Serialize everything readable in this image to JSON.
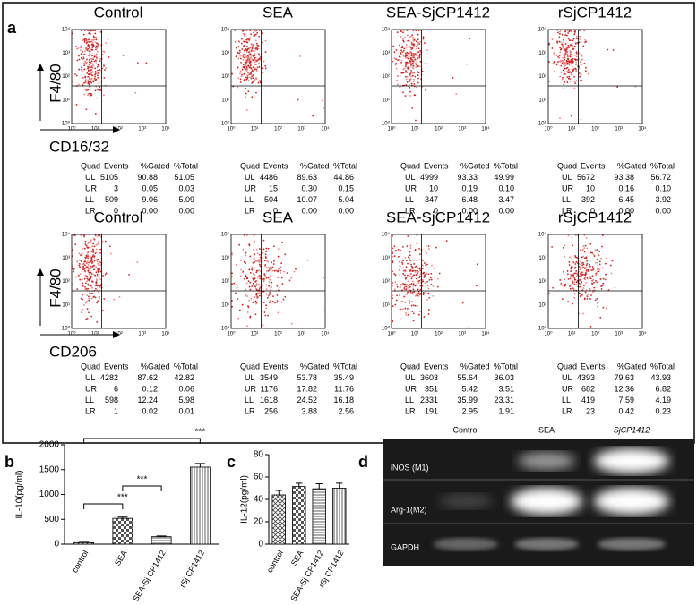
{
  "panel_labels": [
    "a",
    "b",
    "c",
    "d"
  ],
  "flow": {
    "log_ticks": [
      "10⁰",
      "10¹",
      "10²",
      "10³",
      "10⁴"
    ],
    "y_label": "F4/80",
    "table_header": [
      "Quad",
      "Events",
      "%Gated",
      "%Total"
    ],
    "rows": [
      {
        "x_label": "CD16/32",
        "plots": [
          {
            "title": "Control",
            "table": [
              [
                "UL",
                "5105",
                "90.88",
                "51.05"
              ],
              [
                "UR",
                "3",
                "0.05",
                "0.03"
              ],
              [
                "LL",
                "509",
                "9.06",
                "5.09"
              ],
              [
                "LR",
                "0",
                "0.00",
                "0.00"
              ]
            ]
          },
          {
            "title": "SEA",
            "table": [
              [
                "UL",
                "4486",
                "89.63",
                "44.86"
              ],
              [
                "UR",
                "15",
                "0.30",
                "0.15"
              ],
              [
                "LL",
                "504",
                "10.07",
                "5.04"
              ],
              [
                "LR",
                "0",
                "0.00",
                "0.00"
              ]
            ]
          },
          {
            "title": "SEA-SjCP1412",
            "table": [
              [
                "UL",
                "4999",
                "93.33",
                "49.99"
              ],
              [
                "UR",
                "10",
                "0.19",
                "0.10"
              ],
              [
                "LL",
                "347",
                "6.48",
                "3.47"
              ],
              [
                "LR",
                "0",
                "0.00",
                "0.00"
              ]
            ]
          },
          {
            "title": "rSjCP1412",
            "table": [
              [
                "UL",
                "5672",
                "93.38",
                "56.72"
              ],
              [
                "UR",
                "10",
                "0.16",
                "0.10"
              ],
              [
                "LL",
                "392",
                "6.45",
                "3.92"
              ],
              [
                "LR",
                "0",
                "0.00",
                "0.00"
              ]
            ]
          }
        ]
      },
      {
        "x_label": "CD206",
        "plots": [
          {
            "title": "Control",
            "table": [
              [
                "UL",
                "4282",
                "87.62",
                "42.82"
              ],
              [
                "UR",
                "6",
                "0.12",
                "0.06"
              ],
              [
                "LL",
                "598",
                "12.24",
                "5.98"
              ],
              [
                "LR",
                "1",
                "0.02",
                "0.01"
              ]
            ]
          },
          {
            "title": "SEA",
            "table": [
              [
                "UL",
                "3549",
                "53.78",
                "35.49"
              ],
              [
                "UR",
                "1176",
                "17.82",
                "11.76"
              ],
              [
                "LL",
                "1618",
                "24.52",
                "16.18"
              ],
              [
                "LR",
                "256",
                "3.88",
                "2.56"
              ]
            ]
          },
          {
            "title": "SEA-SjCP1412",
            "table": [
              [
                "UL",
                "3603",
                "55.64",
                "36.03"
              ],
              [
                "UR",
                "351",
                "5.42",
                "3.51"
              ],
              [
                "LL",
                "2331",
                "35.99",
                "23.31"
              ],
              [
                "LR",
                "191",
                "2.95",
                "1.91"
              ]
            ]
          },
          {
            "title": "rSjCP1412",
            "table": [
              [
                "UL",
                "4393",
                "79.63",
                "43.93"
              ],
              [
                "UR",
                "682",
                "12.36",
                "6.82"
              ],
              [
                "LL",
                "419",
                "7.59",
                "4.19"
              ],
              [
                "LR",
                "23",
                "0.42",
                "0.23"
              ]
            ]
          }
        ]
      }
    ]
  },
  "chart_data": [
    {
      "type": "bar",
      "y_label": "IL-10(pg/ml)",
      "categories": [
        "control",
        "SEA",
        "SEA-Sj CP1412",
        "rSj CP1412"
      ],
      "values": [
        30,
        520,
        150,
        1550
      ],
      "errors": [
        8,
        25,
        15,
        75
      ],
      "ylim": [
        0,
        2000
      ],
      "yticks": [
        0,
        500,
        1000,
        1500,
        2000
      ],
      "annotations": [
        "***",
        "***",
        "***"
      ]
    },
    {
      "type": "bar",
      "y_label": "IL-12(pg/ml)",
      "categories": [
        "control",
        "SEA",
        "SEA-Sj CP1412",
        "rSj CP1412"
      ],
      "values": [
        44,
        51.5,
        49.5,
        50
      ],
      "errors": [
        4,
        3,
        4.5,
        4.5
      ],
      "ylim": [
        0,
        80
      ],
      "yticks": [
        0,
        20,
        40,
        60,
        80
      ]
    }
  ],
  "gel": {
    "columns": [
      "Control",
      "SEA",
      "SjCP1412"
    ],
    "rows": [
      "iNOS (M1)",
      "Arg-1(M2)",
      "GAPDH"
    ]
  }
}
